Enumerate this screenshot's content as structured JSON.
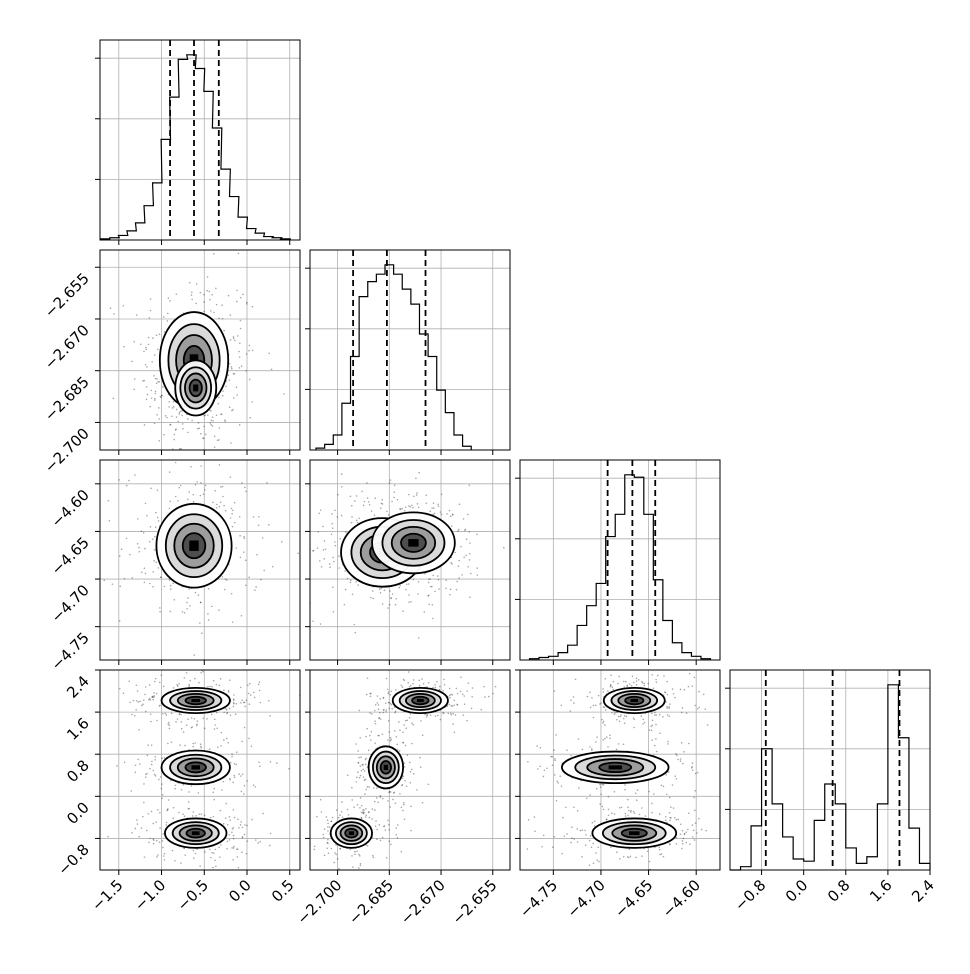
{
  "chart_data": {
    "type": "corner",
    "title": "",
    "parameters": [
      {
        "index": 0,
        "range": [
          -1.72,
          0.62
        ],
        "ticks": [
          -1.5,
          -1.0,
          -0.5,
          0.0,
          0.5
        ],
        "tick_labels": [
          "−1.5",
          "−1.0",
          "−0.5",
          "0.0",
          "0.5"
        ],
        "quantiles": [
          -0.9,
          -0.62,
          -0.33
        ]
      },
      {
        "index": 1,
        "range": [
          -2.708,
          -2.65
        ],
        "ticks": [
          -2.7,
          -2.685,
          -2.67,
          -2.655
        ],
        "tick_labels": [
          "−2.700",
          "−2.685",
          "−2.670",
          "−2.655"
        ],
        "quantiles": [
          -2.6955,
          -2.6857,
          -2.6745
        ]
      },
      {
        "index": 2,
        "range": [
          -4.785,
          -4.575
        ],
        "ticks": [
          -4.75,
          -4.7,
          -4.65,
          -4.6
        ],
        "tick_labels": [
          "−4.75",
          "−4.70",
          "−4.65",
          "−4.60"
        ],
        "quantiles": [
          -4.693,
          -4.667,
          -4.643
        ]
      },
      {
        "index": 3,
        "range": [
          -1.4,
          2.4
        ],
        "ticks": [
          -0.8,
          0.0,
          0.8,
          1.6,
          2.4
        ],
        "tick_labels": [
          "−0.8",
          "0.0",
          "0.8",
          "1.6",
          "2.4"
        ],
        "quantiles": [
          -0.72,
          0.55,
          1.82
        ]
      }
    ],
    "histograms": [
      {
        "param": 0,
        "bins": [
          {
            "x": -1.66,
            "c": 1
          },
          {
            "x": -1.55,
            "c": 2
          },
          {
            "x": -1.45,
            "c": 4
          },
          {
            "x": -1.35,
            "c": 8
          },
          {
            "x": -1.25,
            "c": 15
          },
          {
            "x": -1.15,
            "c": 30
          },
          {
            "x": -1.05,
            "c": 50
          },
          {
            "x": -0.95,
            "c": 88
          },
          {
            "x": -0.85,
            "c": 125
          },
          {
            "x": -0.75,
            "c": 158
          },
          {
            "x": -0.65,
            "c": 162
          },
          {
            "x": -0.55,
            "c": 150
          },
          {
            "x": -0.45,
            "c": 130
          },
          {
            "x": -0.35,
            "c": 98
          },
          {
            "x": -0.25,
            "c": 62
          },
          {
            "x": -0.15,
            "c": 38
          },
          {
            "x": -0.05,
            "c": 20
          },
          {
            "x": 0.05,
            "c": 10
          },
          {
            "x": 0.15,
            "c": 6
          },
          {
            "x": 0.25,
            "c": 3
          },
          {
            "x": 0.35,
            "c": 2
          },
          {
            "x": 0.45,
            "c": 1
          }
        ]
      },
      {
        "param": 1,
        "bins": [
          {
            "x": -2.705,
            "c": 1
          },
          {
            "x": -2.7025,
            "c": 3
          },
          {
            "x": -2.7,
            "c": 8
          },
          {
            "x": -2.6975,
            "c": 25
          },
          {
            "x": -2.695,
            "c": 50
          },
          {
            "x": -2.6925,
            "c": 82
          },
          {
            "x": -2.69,
            "c": 90
          },
          {
            "x": -2.6875,
            "c": 94
          },
          {
            "x": -2.685,
            "c": 99
          },
          {
            "x": -2.6825,
            "c": 94
          },
          {
            "x": -2.68,
            "c": 86
          },
          {
            "x": -2.6775,
            "c": 78
          },
          {
            "x": -2.675,
            "c": 62
          },
          {
            "x": -2.6725,
            "c": 50
          },
          {
            "x": -2.67,
            "c": 32
          },
          {
            "x": -2.6675,
            "c": 20
          },
          {
            "x": -2.665,
            "c": 8
          },
          {
            "x": -2.6625,
            "c": 2
          }
        ]
      },
      {
        "param": 2,
        "bins": [
          {
            "x": -4.77,
            "c": 1
          },
          {
            "x": -4.76,
            "c": 2
          },
          {
            "x": -4.75,
            "c": 3
          },
          {
            "x": -4.74,
            "c": 6
          },
          {
            "x": -4.73,
            "c": 12
          },
          {
            "x": -4.72,
            "c": 28
          },
          {
            "x": -4.71,
            "c": 44
          },
          {
            "x": -4.7,
            "c": 62
          },
          {
            "x": -4.69,
            "c": 100
          },
          {
            "x": -4.68,
            "c": 118
          },
          {
            "x": -4.67,
            "c": 150
          },
          {
            "x": -4.66,
            "c": 148
          },
          {
            "x": -4.65,
            "c": 118
          },
          {
            "x": -4.64,
            "c": 65
          },
          {
            "x": -4.63,
            "c": 32
          },
          {
            "x": -4.62,
            "c": 14
          },
          {
            "x": -4.61,
            "c": 6
          },
          {
            "x": -4.6,
            "c": 3
          },
          {
            "x": -4.59,
            "c": 1
          }
        ]
      },
      {
        "param": 3,
        "bins": [
          {
            "x": -1.3,
            "c": 0
          },
          {
            "x": -1.1,
            "c": 3
          },
          {
            "x": -0.9,
            "c": 40
          },
          {
            "x": -0.7,
            "c": 110
          },
          {
            "x": -0.5,
            "c": 60
          },
          {
            "x": -0.3,
            "c": 30
          },
          {
            "x": -0.1,
            "c": 10
          },
          {
            "x": 0.1,
            "c": 8
          },
          {
            "x": 0.3,
            "c": 45
          },
          {
            "x": 0.5,
            "c": 78
          },
          {
            "x": 0.7,
            "c": 60
          },
          {
            "x": 0.9,
            "c": 20
          },
          {
            "x": 1.1,
            "c": 6
          },
          {
            "x": 1.3,
            "c": 12
          },
          {
            "x": 1.5,
            "c": 60
          },
          {
            "x": 1.7,
            "c": 168
          },
          {
            "x": 1.9,
            "c": 120
          },
          {
            "x": 2.1,
            "c": 38
          },
          {
            "x": 2.3,
            "c": 6
          }
        ]
      }
    ],
    "density_panels": [
      {
        "x_param": 0,
        "y_param": 1,
        "modes": [
          {
            "mx": -0.62,
            "my": -2.682,
            "sx": 0.2,
            "sy": 0.007,
            "w": 1.0
          },
          {
            "mx": -0.6,
            "my": -2.69,
            "sx": 0.12,
            "sy": 0.004,
            "w": 0.8
          }
        ]
      },
      {
        "x_param": 0,
        "y_param": 2,
        "modes": [
          {
            "mx": -0.62,
            "my": -4.665,
            "sx": 0.22,
            "sy": 0.022,
            "w": 1.0
          }
        ]
      },
      {
        "x_param": 1,
        "y_param": 2,
        "modes": [
          {
            "mx": -2.687,
            "my": -4.672,
            "sx": 0.006,
            "sy": 0.018,
            "w": 0.9
          },
          {
            "mx": -2.678,
            "my": -4.662,
            "sx": 0.006,
            "sy": 0.016,
            "w": 0.9
          }
        ]
      },
      {
        "x_param": 0,
        "y_param": 3,
        "modes": [
          {
            "mx": -0.6,
            "my": 1.82,
            "sx": 0.2,
            "sy": 0.12,
            "w": 1.0
          },
          {
            "mx": -0.6,
            "my": 0.55,
            "sx": 0.2,
            "sy": 0.16,
            "w": 0.7
          },
          {
            "mx": -0.6,
            "my": -0.7,
            "sx": 0.18,
            "sy": 0.14,
            "w": 0.85
          }
        ]
      },
      {
        "x_param": 1,
        "y_param": 3,
        "modes": [
          {
            "mx": -2.676,
            "my": 1.82,
            "sx": 0.004,
            "sy": 0.12,
            "w": 1.0
          },
          {
            "mx": -2.686,
            "my": 0.55,
            "sx": 0.0025,
            "sy": 0.2,
            "w": 0.7
          },
          {
            "mx": -2.696,
            "my": -0.7,
            "sx": 0.003,
            "sy": 0.14,
            "w": 0.85
          }
        ]
      },
      {
        "x_param": 2,
        "y_param": 3,
        "modes": [
          {
            "mx": -4.665,
            "my": 1.82,
            "sx": 0.016,
            "sy": 0.12,
            "w": 1.0
          },
          {
            "mx": -4.685,
            "my": 0.55,
            "sx": 0.028,
            "sy": 0.15,
            "w": 0.7
          },
          {
            "mx": -4.665,
            "my": -0.7,
            "sx": 0.022,
            "sy": 0.14,
            "w": 0.85
          }
        ]
      }
    ],
    "grid": true,
    "colors": {
      "line": "#000000",
      "grid": "#b0b0b0",
      "density_dark": "#000000",
      "density_light": "#ffffff",
      "scatter": "#000000"
    }
  }
}
